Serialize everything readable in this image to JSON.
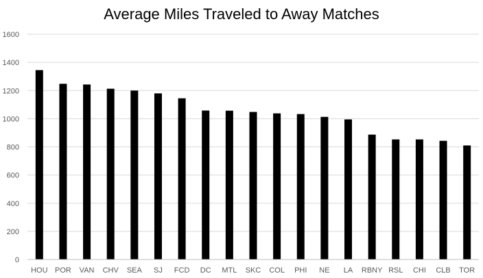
{
  "chart_data": {
    "type": "bar",
    "title": "Average Miles Traveled to Away Matches",
    "xlabel": "",
    "ylabel": "",
    "categories": [
      "HOU",
      "POR",
      "VAN",
      "CHV",
      "SEA",
      "SJ",
      "FCD",
      "DC",
      "MTL",
      "SKC",
      "COL",
      "PHI",
      "NE",
      "LA",
      "RBNY",
      "RSL",
      "CHI",
      "CLB",
      "TOR"
    ],
    "values": [
      1345,
      1248,
      1243,
      1213,
      1200,
      1180,
      1145,
      1058,
      1057,
      1048,
      1038,
      1033,
      1013,
      995,
      887,
      853,
      853,
      843,
      810
    ],
    "ylim": [
      0,
      1600
    ],
    "yticks": [
      0,
      200,
      400,
      600,
      800,
      1000,
      1200,
      1400,
      1600
    ],
    "grid": true,
    "legend": "none",
    "bar_color": "#000000"
  }
}
